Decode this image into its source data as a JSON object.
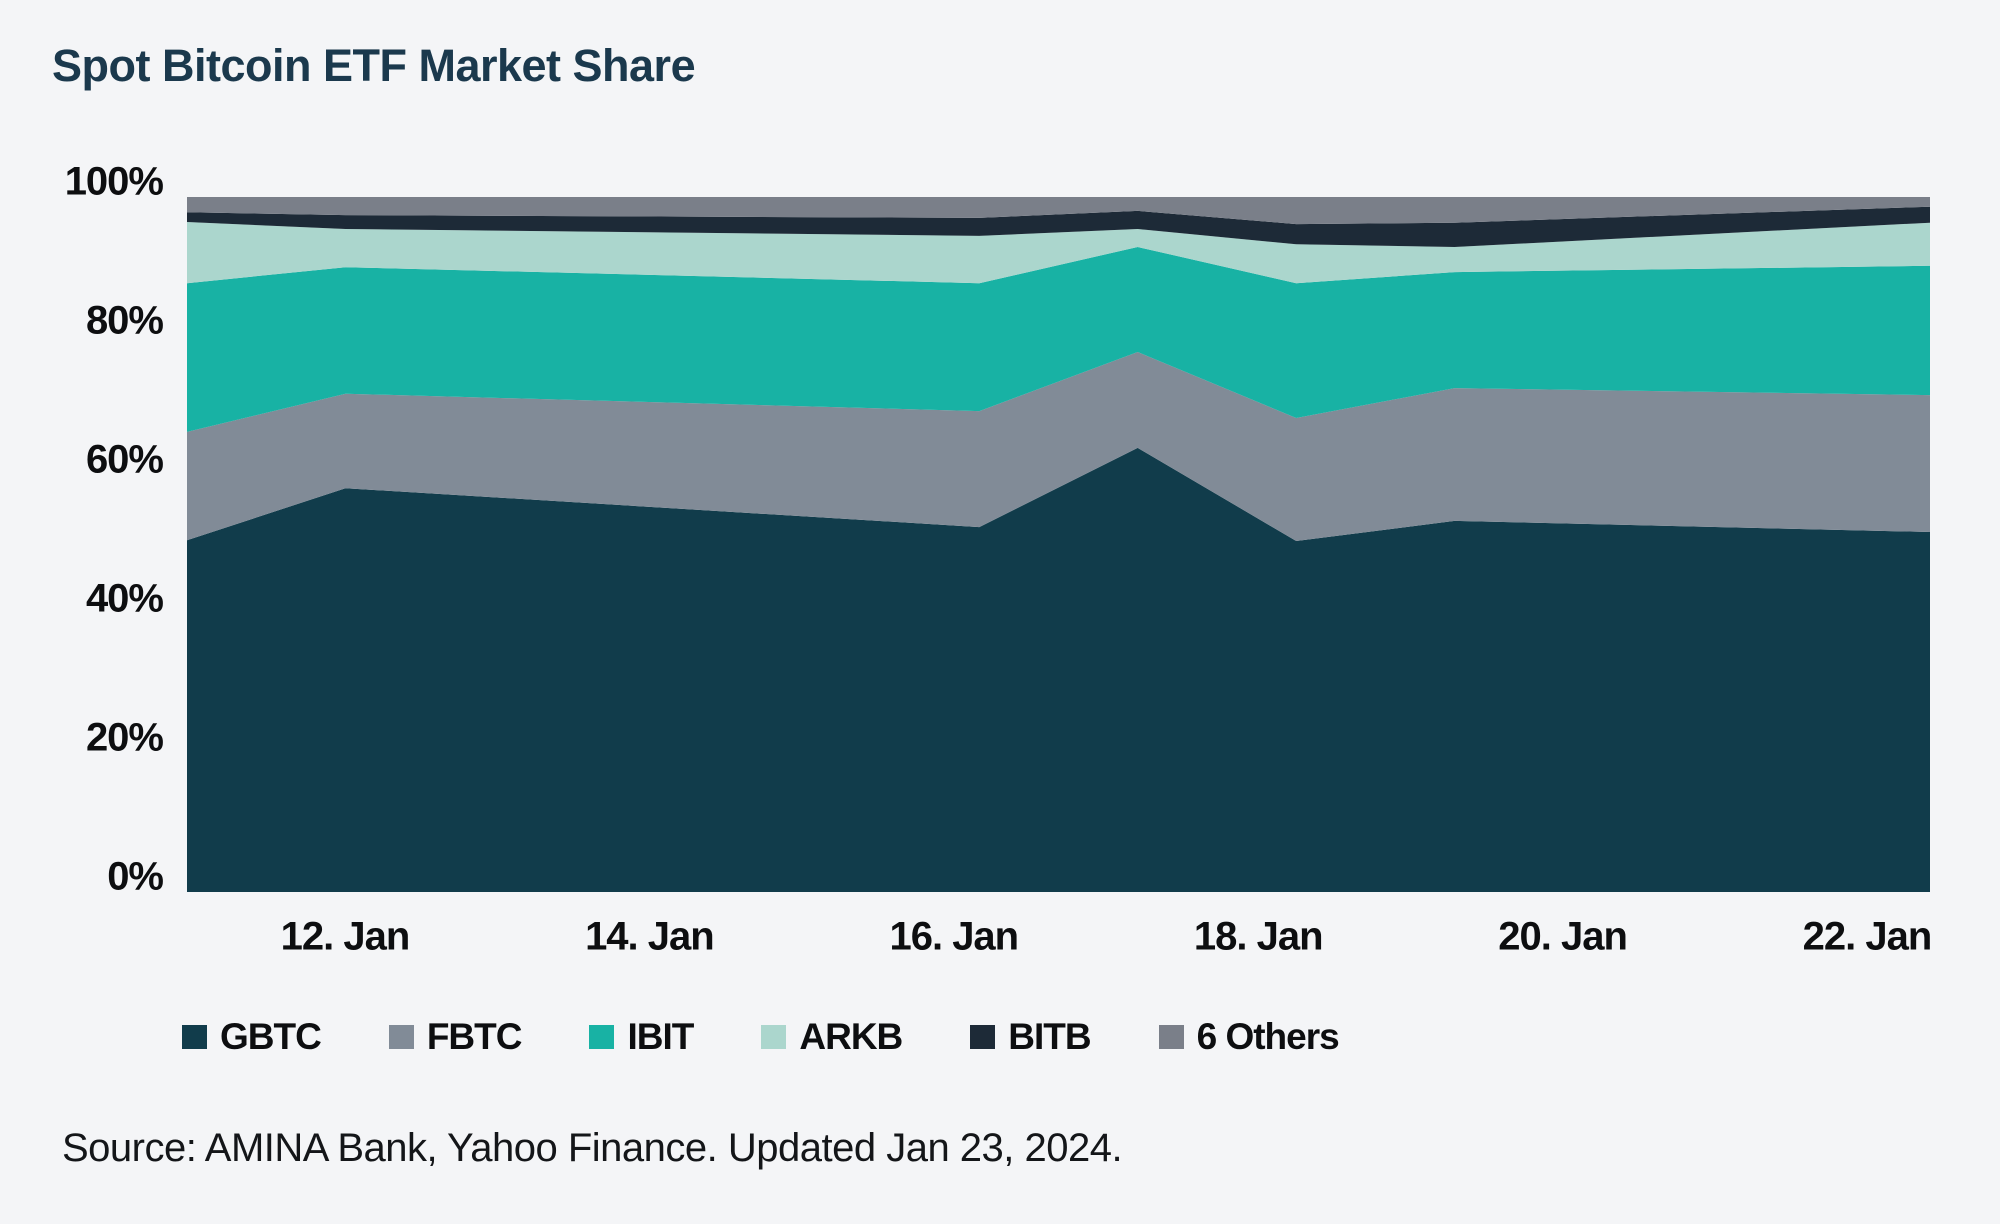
{
  "title": "Spot Bitcoin ETF Market Share",
  "source": "Source: AMINA Bank, Yahoo Finance. Updated Jan 23, 2024.",
  "colors": {
    "background": "#f4f5f7",
    "title": "#1b394d",
    "axis_text": "#0d0e10",
    "source_text": "#141619"
  },
  "chart_data": {
    "type": "area",
    "stacking": "percent",
    "title": "Spot Bitcoin ETF Market Share",
    "x_dates": [
      "2024-01-11",
      "2024-01-12",
      "2024-01-16",
      "2024-01-17",
      "2024-01-18",
      "2024-01-19",
      "2024-01-22"
    ],
    "x_day_offsets": [
      0,
      1,
      5,
      6,
      7,
      8,
      11
    ],
    "x_axis_span_days": 11,
    "series": [
      {
        "name": "GBTC",
        "color": "#113c4b",
        "values": [
          50.6,
          58.1,
          52.5,
          63.9,
          50.5,
          53.4,
          51.8
        ]
      },
      {
        "name": "FBTC",
        "color": "#818b97",
        "values": [
          15.6,
          13.6,
          16.7,
          13.8,
          17.7,
          19.1,
          19.7
        ]
      },
      {
        "name": "IBIT",
        "color": "#18b2a4",
        "values": [
          21.4,
          18.2,
          18.4,
          15.1,
          19.4,
          16.7,
          18.6
        ]
      },
      {
        "name": "ARKB",
        "color": "#abd6cd",
        "values": [
          8.8,
          5.5,
          6.8,
          2.6,
          5.6,
          3.6,
          6.2
        ]
      },
      {
        "name": "BITB",
        "color": "#1d2a37",
        "values": [
          1.4,
          2.0,
          2.6,
          2.6,
          2.9,
          3.5,
          2.3
        ]
      },
      {
        "name": "6 Others",
        "color": "#7a7f89",
        "values": [
          2.2,
          2.6,
          3.0,
          2.0,
          3.9,
          3.7,
          1.4
        ]
      }
    ],
    "y_axis": {
      "range": [
        0,
        100
      ],
      "unit": "%",
      "ticks": [
        {
          "label": "100%",
          "value": 100
        },
        {
          "label": "80%",
          "value": 80
        },
        {
          "label": "60%",
          "value": 60
        },
        {
          "label": "40%",
          "value": 40
        },
        {
          "label": "20%",
          "value": 20
        },
        {
          "label": "0%",
          "value": 0
        }
      ]
    },
    "x_axis": {
      "ticks": [
        "12. Jan",
        "14. Jan",
        "16. Jan",
        "18. Jan",
        "20. Jan",
        "22. Jan"
      ]
    },
    "legend": {
      "position": "bottom",
      "items": [
        "GBTC",
        "FBTC",
        "IBIT",
        "ARKB",
        "BITB",
        "6 Others"
      ]
    },
    "grid": "none"
  }
}
